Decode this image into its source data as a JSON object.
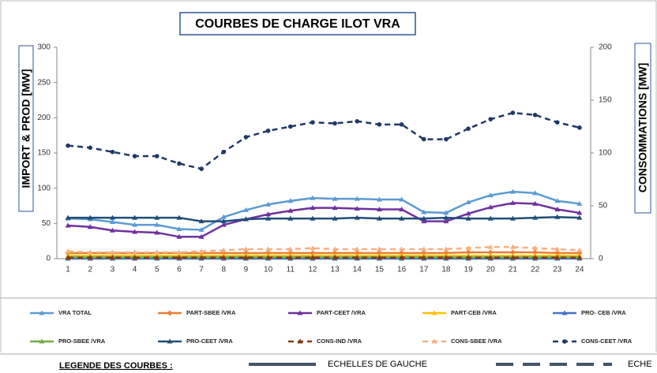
{
  "chart_data": {
    "type": "line",
    "title": "COURBES DE CHARGE ILOT VRA",
    "ylabel": "IMPORT & PROD [MW]",
    "y2label": "CONSOMMATIONS [MW]",
    "categories": [
      1,
      2,
      3,
      4,
      5,
      6,
      7,
      8,
      9,
      10,
      11,
      12,
      13,
      14,
      15,
      16,
      17,
      18,
      19,
      20,
      21,
      22,
      23,
      24
    ],
    "ylim": [
      0,
      300
    ],
    "yticks": [
      0,
      50,
      100,
      150,
      200,
      250,
      300
    ],
    "y2lim": [
      0,
      200
    ],
    "y2ticks": [
      0,
      50,
      100,
      150,
      200
    ],
    "grid": false,
    "series": [
      {
        "name": "VRA TOTAL",
        "color": "#5b9bd5",
        "marker": "triangle",
        "dashed": false,
        "values": [
          57,
          56,
          52,
          48,
          48,
          42,
          41,
          59,
          69,
          77,
          82,
          86,
          85,
          85,
          84,
          84,
          66,
          65,
          80,
          90,
          95,
          93,
          82,
          78
        ]
      },
      {
        "name": "PART-SBEE /VRA",
        "color": "#ed7d31",
        "marker": "diamond",
        "dashed": false,
        "values": [
          8,
          8,
          8,
          8,
          8,
          8,
          8,
          8,
          8,
          8,
          8,
          8,
          8,
          8,
          8,
          8,
          8,
          8,
          9,
          9,
          9,
          9,
          8,
          8
        ]
      },
      {
        "name": "PART-CEET /VRA",
        "color": "#7030a0",
        "marker": "triangle",
        "dashed": false,
        "values": [
          47,
          45,
          40,
          38,
          37,
          31,
          31,
          48,
          56,
          63,
          68,
          72,
          72,
          71,
          70,
          70,
          53,
          53,
          64,
          73,
          79,
          78,
          70,
          65
        ]
      },
      {
        "name": "PART-CEB /VRA",
        "color": "#ffc000",
        "marker": "triangle",
        "dashed": false,
        "values": [
          4,
          4,
          4,
          4,
          4,
          4,
          4,
          4,
          4,
          4,
          4,
          4,
          4,
          4,
          4,
          4,
          4,
          4,
          4,
          4,
          4,
          4,
          4,
          4
        ]
      },
      {
        "name": "PRO- CEB /VRA",
        "color": "#4472c4",
        "marker": "triangle",
        "dashed": false,
        "values": [
          0,
          0,
          0,
          0,
          0,
          0,
          0,
          0,
          0,
          0,
          0,
          0,
          0,
          0,
          0,
          0,
          0,
          0,
          0,
          0,
          0,
          0,
          0,
          0
        ]
      },
      {
        "name": "PRO-SBEE /VRA",
        "color": "#70ad47",
        "marker": "triangle",
        "dashed": false,
        "values": [
          2,
          2,
          2,
          2,
          2,
          2,
          2,
          2,
          2,
          2,
          2,
          2,
          2,
          2,
          2,
          2,
          2,
          2,
          2,
          2,
          2,
          2,
          2,
          2
        ]
      },
      {
        "name": "PRO-CEET /VRA",
        "color": "#1f4e79",
        "marker": "triangle",
        "dashed": false,
        "values": [
          58,
          58,
          58,
          58,
          58,
          58,
          53,
          53,
          56,
          57,
          57,
          57,
          57,
          58,
          57,
          57,
          57,
          58,
          57,
          57,
          57,
          58,
          59,
          58
        ]
      },
      {
        "name": "CONS-IND /VRA",
        "color": "#843c0c",
        "marker": "triangle",
        "dashed": true,
        "axis": "y2",
        "values": [
          1,
          1,
          1,
          1,
          1,
          1,
          1,
          1,
          1,
          1,
          1,
          1,
          1,
          1,
          1,
          1,
          1,
          1,
          1,
          1,
          1,
          1,
          1,
          1
        ]
      },
      {
        "name": "CONS-SBEE  /VRA",
        "color": "#f4b183",
        "marker": "triangle",
        "dashed": true,
        "axis": "y2",
        "values": [
          7,
          6,
          6,
          6,
          6,
          6,
          7,
          8,
          9,
          9,
          9,
          10,
          9,
          9,
          9,
          9,
          9,
          9,
          10,
          11,
          11,
          10,
          9,
          8
        ]
      },
      {
        "name": "CONS-CEET  /VRA",
        "color": "#203864",
        "marker": "circle",
        "dashed": true,
        "axis": "y2",
        "values": [
          107,
          105,
          101,
          97,
          97,
          90,
          85,
          101,
          115,
          121,
          125,
          129,
          128,
          130,
          127,
          127,
          113,
          113,
          123,
          132,
          138,
          136,
          129,
          124
        ]
      }
    ]
  },
  "footer": {
    "label": "LEGENDE DES COURBES :",
    "left_scale": "ECHELLES DE GAUCHE",
    "right_scale": "ECHE"
  }
}
